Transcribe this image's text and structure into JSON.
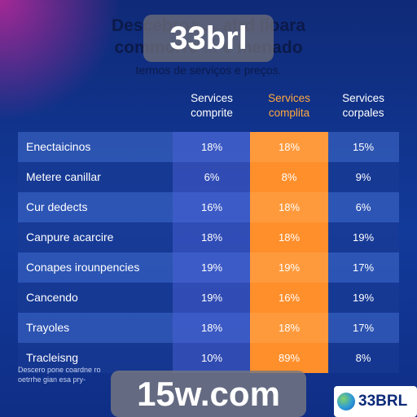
{
  "header": {
    "title_line1": "Descebroa      ...      atrd lioara",
    "title_line2": "commorro      ...      e menado",
    "subtitle": "termos de serviços e preços."
  },
  "brand_overlay": "33brl",
  "columns": [
    {
      "line1": "Services",
      "line2": "comprite",
      "highlight": false
    },
    {
      "line1": "Services",
      "line2": "complita",
      "highlight": true
    },
    {
      "line1": "Services",
      "line2": "corpales",
      "highlight": false
    }
  ],
  "rows": [
    {
      "label": "Enectaicinos",
      "values": [
        "18%",
        "18%",
        "15%"
      ]
    },
    {
      "label": "Metere canillar",
      "values": [
        "6%",
        "8%",
        "9%"
      ]
    },
    {
      "label": "Cur dedects",
      "values": [
        "16%",
        "18%",
        "6%"
      ]
    },
    {
      "label": "Canpure acarcire",
      "values": [
        "18%",
        "18%",
        "19%"
      ]
    },
    {
      "label": "Conapes irounpencies",
      "values": [
        "19%",
        "19%",
        "17%"
      ]
    },
    {
      "label": "Cancendo",
      "values": [
        "19%",
        "16%",
        "19%"
      ]
    },
    {
      "label": "Trayoles",
      "values": [
        "18%",
        "18%",
        "17%"
      ]
    },
    {
      "label": "Tracleisng",
      "values": [
        "10%",
        "89%",
        "8%"
      ]
    }
  ],
  "footnote": {
    "line1": "Descero pone coardne ro",
    "line2": "oetrrhe gian esa pry-"
  },
  "domain_overlay": "15w.com",
  "logo": {
    "text": "33BRL",
    "icon": "globe-icon"
  },
  "colors": {
    "background": "#123a9a",
    "highlight_column": "#ff9a3c",
    "highlight_header": "#ffa940",
    "glow": "#d628a0"
  }
}
